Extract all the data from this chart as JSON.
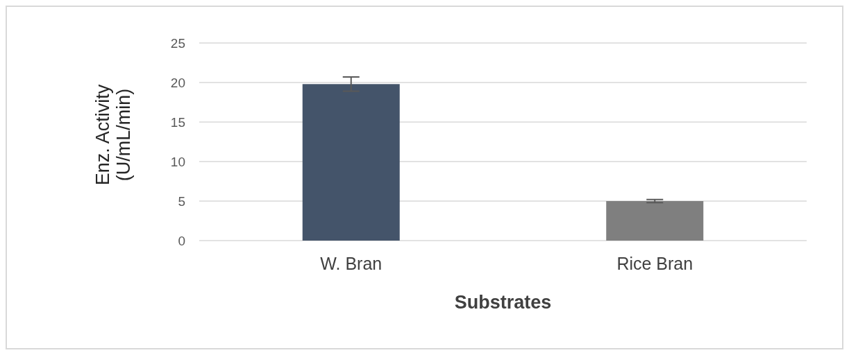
{
  "chart_data": {
    "type": "bar",
    "xlabel": "Substrates",
    "ylabel": "Enz. Activity (U/mL/min)",
    "categories": [
      "W. Bran",
      "Rice Bran"
    ],
    "values": [
      19.8,
      5.0
    ],
    "colors": [
      "#44546a",
      "#7f7f7f"
    ],
    "errors": [
      0.9,
      0.2
    ],
    "ylim": [
      0,
      25
    ],
    "yticks": [
      0,
      5,
      10,
      15,
      20,
      25
    ],
    "grid": "y"
  }
}
